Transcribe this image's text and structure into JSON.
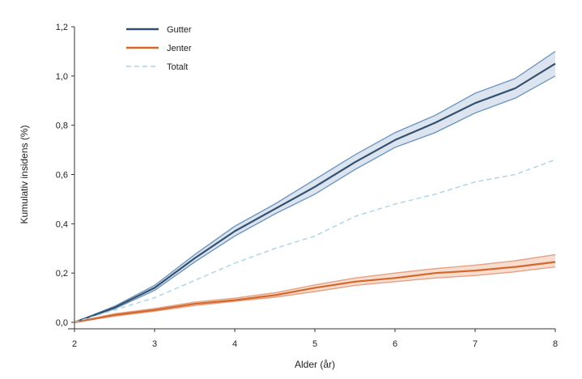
{
  "chart_data": {
    "type": "line",
    "xlabel": "Alder (år)",
    "ylabel": "Kumulativ insidens (%)",
    "xlim": [
      2,
      8
    ],
    "ylim": [
      0,
      1.2
    ],
    "x_ticks": [
      "2",
      "3",
      "4",
      "5",
      "6",
      "7",
      "8"
    ],
    "y_ticks": [
      "0,0",
      "0,2",
      "0,4",
      "0,6",
      "0,8",
      "1,0",
      "1,2"
    ],
    "x": [
      2,
      2.5,
      3,
      3.5,
      4,
      4.5,
      5,
      5.5,
      6,
      6.5,
      7,
      7.5,
      8
    ],
    "legend_position": "top-left",
    "series": [
      {
        "name": "Gutter",
        "color": "#34506e",
        "band_color": "#dbe4ef",
        "band_edge_color": "#6f97c0",
        "style": "solid",
        "values": [
          0.0,
          0.06,
          0.14,
          0.26,
          0.37,
          0.46,
          0.55,
          0.65,
          0.74,
          0.81,
          0.89,
          0.95,
          1.05
        ],
        "lower": [
          0.0,
          0.055,
          0.13,
          0.245,
          0.35,
          0.44,
          0.52,
          0.62,
          0.71,
          0.77,
          0.85,
          0.91,
          1.0
        ],
        "upper": [
          0.0,
          0.065,
          0.15,
          0.275,
          0.39,
          0.48,
          0.58,
          0.68,
          0.77,
          0.84,
          0.93,
          0.99,
          1.1
        ]
      },
      {
        "name": "Jenter",
        "color": "#d4682a",
        "band_color": "#f6ddd0",
        "band_edge_color": "#e5a184",
        "style": "solid",
        "values": [
          0.0,
          0.03,
          0.05,
          0.075,
          0.09,
          0.11,
          0.14,
          0.165,
          0.18,
          0.2,
          0.21,
          0.225,
          0.245
        ],
        "lower": [
          0.0,
          0.025,
          0.045,
          0.068,
          0.085,
          0.102,
          0.125,
          0.15,
          0.165,
          0.18,
          0.19,
          0.205,
          0.225
        ],
        "upper": [
          0.0,
          0.035,
          0.056,
          0.082,
          0.098,
          0.12,
          0.152,
          0.18,
          0.2,
          0.218,
          0.232,
          0.25,
          0.275
        ]
      },
      {
        "name": "Totalt",
        "color": "#a9d3ea",
        "style": "dashed",
        "values": [
          0.0,
          0.05,
          0.1,
          0.17,
          0.24,
          0.3,
          0.35,
          0.43,
          0.48,
          0.52,
          0.57,
          0.6,
          0.66
        ]
      }
    ]
  }
}
